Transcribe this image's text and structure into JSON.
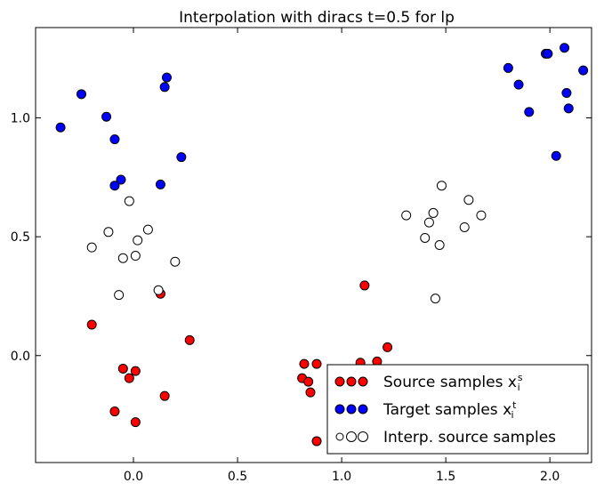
{
  "chart_data": {
    "type": "scatter",
    "title": "Interpolation with diracs t=0.5 for lp",
    "xlabel": "",
    "ylabel": "",
    "xlim": [
      -0.47,
      2.2
    ],
    "ylim": [
      -0.45,
      1.38
    ],
    "x_ticks": [
      0.0,
      0.5,
      1.0,
      1.5,
      2.0
    ],
    "x_tick_labels": [
      "0.0",
      "0.5",
      "1.0",
      "1.5",
      "2.0"
    ],
    "y_ticks": [
      0.0,
      0.5,
      1.0
    ],
    "y_tick_labels": [
      "0.0",
      "0.5",
      "1.0"
    ],
    "grid": false,
    "legend_position": "lower-right",
    "series": [
      {
        "name": "Source samples x",
        "name_sub": "i",
        "name_sup": "s",
        "color": "#ff0000",
        "marker": "filled-circle",
        "points": [
          [
            -0.2,
            0.13
          ],
          [
            0.13,
            0.26
          ],
          [
            0.27,
            0.065
          ],
          [
            -0.05,
            -0.055
          ],
          [
            0.01,
            -0.065
          ],
          [
            -0.02,
            -0.095
          ],
          [
            -0.09,
            -0.235
          ],
          [
            0.01,
            -0.28
          ],
          [
            0.15,
            -0.17
          ],
          [
            0.82,
            -0.035
          ],
          [
            0.88,
            -0.035
          ],
          [
            0.81,
            -0.095
          ],
          [
            0.84,
            -0.11
          ],
          [
            0.85,
            -0.155
          ],
          [
            0.88,
            -0.36
          ],
          [
            1.09,
            -0.03
          ],
          [
            1.17,
            -0.025
          ],
          [
            1.22,
            0.035
          ],
          [
            1.11,
            0.295
          ],
          [
            1.09,
            -0.105
          ],
          [
            1.17,
            -0.115
          ]
        ]
      },
      {
        "name": "Target samples x",
        "name_sub": "i",
        "name_sup": "t",
        "color": "#0000ff",
        "marker": "filled-circle",
        "points": [
          [
            -0.35,
            0.96
          ],
          [
            -0.25,
            1.1
          ],
          [
            -0.13,
            1.005
          ],
          [
            -0.09,
            0.91
          ],
          [
            -0.06,
            0.74
          ],
          [
            -0.09,
            0.715
          ],
          [
            0.15,
            1.13
          ],
          [
            0.16,
            1.17
          ],
          [
            0.23,
            0.835
          ],
          [
            0.13,
            0.72
          ],
          [
            1.8,
            1.21
          ],
          [
            1.85,
            1.14
          ],
          [
            1.9,
            1.025
          ],
          [
            1.98,
            1.27
          ],
          [
            1.99,
            1.27
          ],
          [
            2.07,
            1.295
          ],
          [
            2.08,
            1.105
          ],
          [
            2.09,
            1.04
          ],
          [
            2.16,
            1.2
          ],
          [
            2.03,
            0.84
          ]
        ]
      },
      {
        "name": "Interp. source samples",
        "color": "#ffffff",
        "marker": "open-circle",
        "points": [
          [
            -0.02,
            0.65
          ],
          [
            -0.12,
            0.52
          ],
          [
            -0.2,
            0.455
          ],
          [
            0.07,
            0.53
          ],
          [
            0.02,
            0.485
          ],
          [
            -0.05,
            0.41
          ],
          [
            0.01,
            0.42
          ],
          [
            0.2,
            0.395
          ],
          [
            -0.07,
            0.255
          ],
          [
            0.12,
            0.275
          ],
          [
            1.31,
            0.59
          ],
          [
            1.48,
            0.715
          ],
          [
            1.61,
            0.655
          ],
          [
            1.67,
            0.59
          ],
          [
            1.44,
            0.6
          ],
          [
            1.42,
            0.56
          ],
          [
            1.59,
            0.54
          ],
          [
            1.4,
            0.495
          ],
          [
            1.47,
            0.465
          ],
          [
            1.45,
            0.24
          ]
        ]
      }
    ]
  }
}
